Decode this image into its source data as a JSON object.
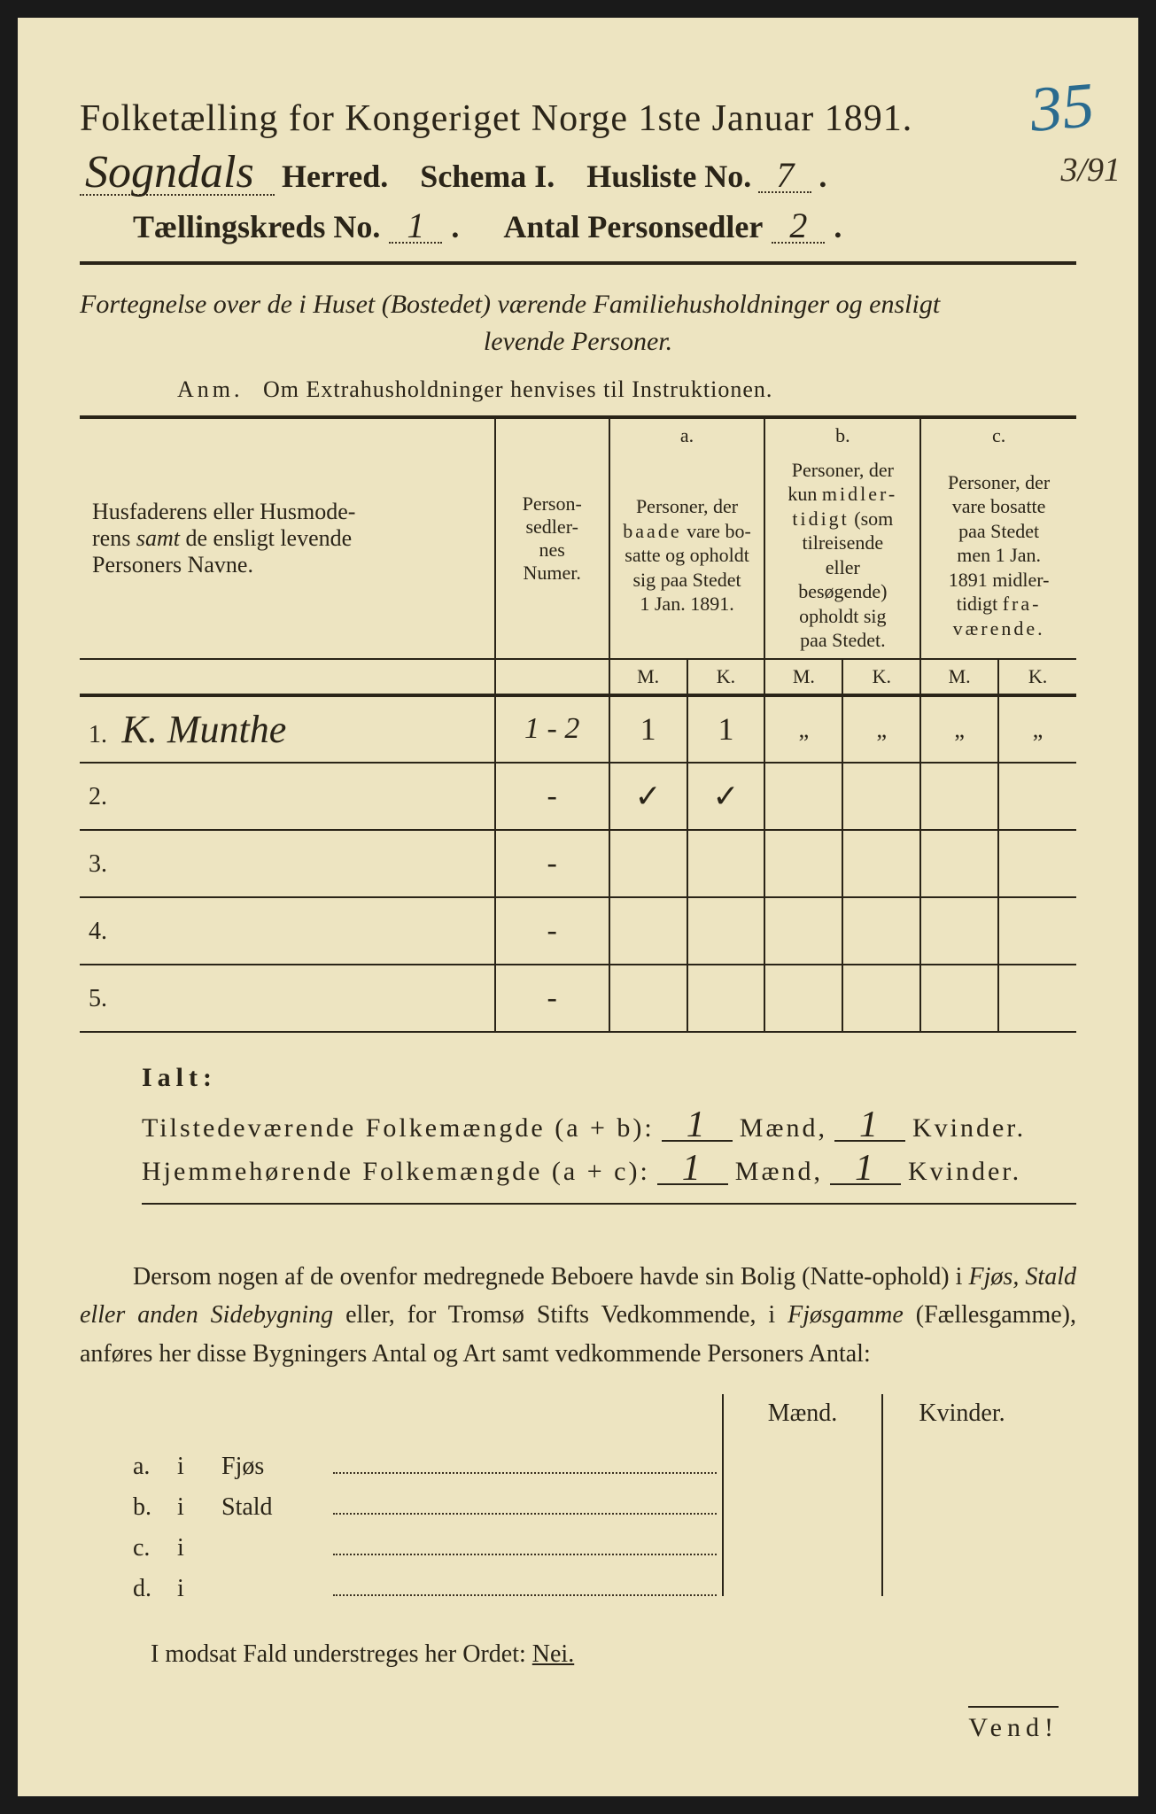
{
  "colors": {
    "paper": "#ede4c1",
    "ink": "#2a2418",
    "blue_pencil": "#2a6b8f",
    "background": "#1a1a1a"
  },
  "typography": {
    "title_fontsize": 42,
    "header_fontsize": 36,
    "body_fontsize": 28,
    "table_header_fontsize": 22,
    "font_family": "Times New Roman"
  },
  "annotations": {
    "corner_number": "35",
    "side_fraction": "3/91"
  },
  "header": {
    "title": "Folketælling for Kongeriget Norge 1ste Januar 1891.",
    "herred_value": "Sogndals",
    "herred_label": "Herred.",
    "schema_label": "Schema I.",
    "husliste_label": "Husliste No.",
    "husliste_value": "7",
    "kreds_label": "Tællingskreds No.",
    "kreds_value": "1",
    "antal_label": "Antal Personsedler",
    "antal_value": "2"
  },
  "subtitle": {
    "line1": "Fortegnelse over de i Huset (Bostedet) værende Familiehusholdninger og ensligt",
    "line2": "levende Personer."
  },
  "anm": {
    "prefix": "Anm.",
    "text": "Om Extrahusholdninger henvises til Instruktionen."
  },
  "table": {
    "col_name": "Husfaderens eller Husmoderens samt de ensligt levende Personers Navne.",
    "col_num": "Person-sedler-nes Numer.",
    "col_a_label": "a.",
    "col_a_text": "Personer, der baade vare bosatte og opholdt sig paa Stedet 1 Jan. 1891.",
    "col_b_label": "b.",
    "col_b_text": "Personer, der kun midlertidigt (som tilreisende eller besøgende) opholdt sig paa Stedet.",
    "col_c_label": "c.",
    "col_c_text": "Personer, der vare bosatte paa Stedet men 1 Jan. 1891 midlertidigt fraværende.",
    "mk_m": "M.",
    "mk_k": "K.",
    "rows": [
      {
        "n": "1.",
        "name": "K. Munthe",
        "num": "1 - 2",
        "a_m": "1",
        "a_k": "1",
        "b_m": "„",
        "b_k": "„",
        "c_m": "„",
        "c_k": "„"
      },
      {
        "n": "2.",
        "name": "",
        "num": "-",
        "a_m": "✓",
        "a_k": "✓",
        "b_m": "",
        "b_k": "",
        "c_m": "",
        "c_k": ""
      },
      {
        "n": "3.",
        "name": "",
        "num": "-",
        "a_m": "",
        "a_k": "",
        "b_m": "",
        "b_k": "",
        "c_m": "",
        "c_k": ""
      },
      {
        "n": "4.",
        "name": "",
        "num": "-",
        "a_m": "",
        "a_k": "",
        "b_m": "",
        "b_k": "",
        "c_m": "",
        "c_k": ""
      },
      {
        "n": "5.",
        "name": "",
        "num": "-",
        "a_m": "",
        "a_k": "",
        "b_m": "",
        "b_k": "",
        "c_m": "",
        "c_k": ""
      }
    ]
  },
  "totals": {
    "ialt": "Ialt:",
    "line1_label": "Tilstedeværende Folkemængde (a + b):",
    "line2_label": "Hjemmehørende Folkemængde (a + c):",
    "maend": "Mænd,",
    "kvinder": "Kvinder.",
    "l1_m": "1",
    "l1_k": "1",
    "l2_m": "1",
    "l2_k": "1"
  },
  "paragraph": "Dersom nogen af de ovenfor medregnede Beboere havde sin Bolig (Natte-ophold) i Fjøs, Stald eller anden Sidebygning eller, for Tromsø Stifts Vedkommende, i Fjøsgamme (Fællesgamme), anføres her disse Bygningers Antal og Art samt vedkommende Personers Antal:",
  "buildings": {
    "head_m": "Mænd.",
    "head_k": "Kvinder.",
    "rows": [
      {
        "lab": "a.",
        "i": "i",
        "type": "Fjøs"
      },
      {
        "lab": "b.",
        "i": "i",
        "type": "Stald"
      },
      {
        "lab": "c.",
        "i": "i",
        "type": ""
      },
      {
        "lab": "d.",
        "i": "i",
        "type": ""
      }
    ]
  },
  "nei_line": {
    "text": "I modsat Fald understreges her Ordet:",
    "word": "Nei."
  },
  "vend": "Vend!"
}
